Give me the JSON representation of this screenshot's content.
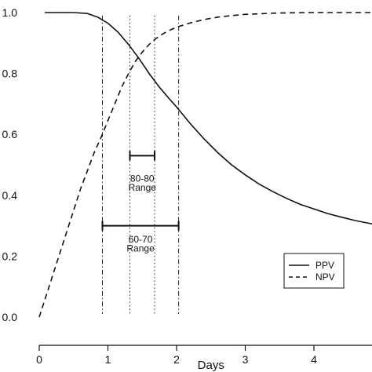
{
  "chart_data": {
    "type": "line",
    "title": "",
    "xlabel": "Days",
    "ylabel": "",
    "xlim": [
      -0.3,
      5.0
    ],
    "ylim": [
      -0.03,
      1.03
    ],
    "grid": false,
    "x_ticks": [
      0,
      1,
      2,
      3,
      4
    ],
    "x_tick_labels": [
      "0",
      "1",
      "2",
      "3",
      "4"
    ],
    "y_ticks": [
      0.0,
      0.2,
      0.4,
      0.6,
      0.8,
      1.0
    ],
    "y_tick_labels": [
      "0.0",
      "0.2",
      "0.4",
      "0.6",
      "0.8",
      "1.0"
    ],
    "legend_position": "bottom-right",
    "series": [
      {
        "name": "PPV",
        "style": "solid",
        "x": [
          0.08,
          0.3,
          0.5,
          0.7,
          0.85,
          1.0,
          1.15,
          1.3,
          1.45,
          1.6,
          1.75,
          1.9,
          2.0,
          2.2,
          2.4,
          2.6,
          2.8,
          3.0,
          3.2,
          3.4,
          3.6,
          3.8,
          4.0,
          4.2,
          4.4,
          4.6,
          4.8,
          5.0
        ],
        "y": [
          1.0,
          1.0,
          1.0,
          0.997,
          0.985,
          0.965,
          0.935,
          0.895,
          0.85,
          0.8,
          0.755,
          0.715,
          0.69,
          0.635,
          0.585,
          0.54,
          0.5,
          0.467,
          0.437,
          0.412,
          0.39,
          0.37,
          0.355,
          0.34,
          0.328,
          0.317,
          0.308,
          0.3
        ]
      },
      {
        "name": "NPV",
        "style": "dashed",
        "x": [
          0.0,
          0.1,
          0.2,
          0.3,
          0.4,
          0.5,
          0.6,
          0.7,
          0.8,
          0.9,
          1.0,
          1.1,
          1.2,
          1.3,
          1.4,
          1.5,
          1.6,
          1.7,
          1.8,
          1.9,
          2.0,
          2.2,
          2.4,
          2.6,
          2.8,
          3.0,
          3.2,
          3.4,
          3.6,
          4.0,
          4.5,
          5.0
        ],
        "y": [
          0.0,
          0.07,
          0.14,
          0.21,
          0.28,
          0.35,
          0.42,
          0.48,
          0.54,
          0.59,
          0.645,
          0.7,
          0.755,
          0.8,
          0.84,
          0.87,
          0.895,
          0.915,
          0.93,
          0.942,
          0.952,
          0.966,
          0.977,
          0.985,
          0.99,
          0.994,
          0.996,
          0.998,
          0.999,
          1.0,
          1.0,
          1.0
        ]
      }
    ],
    "reference_lines": [
      {
        "x": 0.92,
        "style": "dashdot"
      },
      {
        "x": 1.32,
        "style": "dotted"
      },
      {
        "x": 1.68,
        "style": "dotted"
      },
      {
        "x": 2.03,
        "style": "dashdot"
      }
    ],
    "ranges": [
      {
        "x0": 1.32,
        "x1": 1.68,
        "y": 0.53,
        "label_line1": "80-80",
        "label_line2": "Range",
        "label_y1": 0.445,
        "label_y2": 0.415
      },
      {
        "x0": 0.92,
        "x1": 2.03,
        "y": 0.3,
        "label_line1": "60-70",
        "label_line2": "Range",
        "label_y1": 0.245,
        "label_y2": 0.215
      }
    ],
    "legend": [
      {
        "label": "PPV",
        "style": "solid"
      },
      {
        "label": "NPV",
        "style": "dashed"
      }
    ]
  }
}
